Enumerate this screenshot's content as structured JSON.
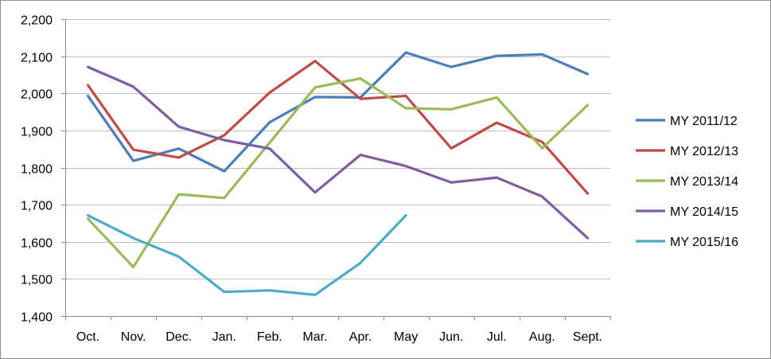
{
  "chart_data": {
    "type": "line",
    "title": "",
    "xlabel": "",
    "ylabel": "",
    "categories": [
      "Oct.",
      "Nov.",
      "Dec.",
      "Jan.",
      "Feb.",
      "Mar.",
      "Apr.",
      "May",
      "Jun.",
      "Jul.",
      "Aug.",
      "Sept."
    ],
    "ylim": [
      1400,
      2200
    ],
    "ytick_values": [
      1400,
      1500,
      1600,
      1700,
      1800,
      1900,
      2000,
      2100,
      2200
    ],
    "ytick_labels": [
      "1,400",
      "1,500",
      "1,600",
      "1,700",
      "1,800",
      "1,900",
      "2,000",
      "2,100",
      "2,200"
    ],
    "grid": true,
    "legend_position": "right",
    "series": [
      {
        "name": "MY 2011/12",
        "color": "#4a7ebb",
        "values": [
          1993,
          1818,
          1851,
          1790,
          1922,
          1990,
          1989,
          2110,
          2071,
          2101,
          2105,
          2052
        ]
      },
      {
        "name": "MY 2012/13",
        "color": "#be4b48",
        "values": [
          2022,
          1848,
          1827,
          1887,
          2002,
          2087,
          1985,
          1993,
          1852,
          1921,
          1869,
          1730
        ]
      },
      {
        "name": "MY 2013/14",
        "color": "#9bbb59",
        "values": [
          1662,
          1532,
          1728,
          1718,
          1867,
          2016,
          2040,
          1960,
          1957,
          1989,
          1852,
          1968
        ]
      },
      {
        "name": "MY 2014/15",
        "color": "#7d5fa0",
        "values": [
          2071,
          2018,
          1910,
          1874,
          1851,
          1733,
          1834,
          1804,
          1760,
          1773,
          1722,
          1610
        ]
      },
      {
        "name": "MY 2015/16",
        "color": "#4bacc6",
        "values": [
          1671,
          1610,
          1560,
          1465,
          1469,
          1457,
          1543,
          1671,
          null,
          null,
          null,
          null
        ]
      }
    ]
  }
}
